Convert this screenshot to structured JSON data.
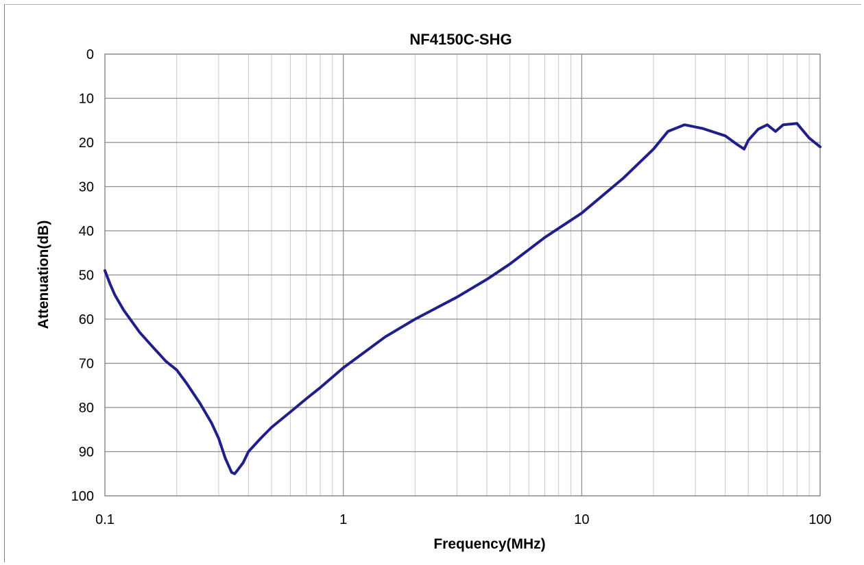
{
  "chart_data": {
    "type": "line",
    "title": "NF4150C-SHG",
    "xlabel": "Frequency(MHz)",
    "ylabel": "Attenuation(dB)",
    "x_scale": "log",
    "xlim": [
      0.1,
      100
    ],
    "ylim": [
      0,
      100
    ],
    "y_inverted": true,
    "grid": true,
    "x_ticks": [
      {
        "value": 0.1,
        "label": "0.1"
      },
      {
        "value": 1,
        "label": "1"
      },
      {
        "value": 10,
        "label": "10"
      },
      {
        "value": 100,
        "label": "100"
      }
    ],
    "y_ticks": [
      {
        "value": 0,
        "label": "0"
      },
      {
        "value": 10,
        "label": "10"
      },
      {
        "value": 20,
        "label": "20"
      },
      {
        "value": 30,
        "label": "30"
      },
      {
        "value": 40,
        "label": "40"
      },
      {
        "value": 50,
        "label": "50"
      },
      {
        "value": 60,
        "label": "60"
      },
      {
        "value": 70,
        "label": "70"
      },
      {
        "value": 80,
        "label": "80"
      },
      {
        "value": 90,
        "label": "90"
      },
      {
        "value": 100,
        "label": "100"
      }
    ],
    "series": [
      {
        "color": "#1f1f8c",
        "x": [
          0.1,
          0.105,
          0.11,
          0.12,
          0.14,
          0.16,
          0.18,
          0.2,
          0.22,
          0.25,
          0.28,
          0.3,
          0.32,
          0.34,
          0.35,
          0.36,
          0.38,
          0.4,
          0.45,
          0.5,
          0.6,
          0.7,
          0.8,
          1,
          1.5,
          2,
          3,
          4,
          5,
          7,
          10,
          15,
          20,
          23,
          27,
          32,
          40,
          45,
          48,
          50,
          55,
          60,
          65,
          70,
          80,
          90,
          100
        ],
        "y": [
          49,
          52,
          54.5,
          58,
          63,
          66.5,
          69.5,
          71.5,
          74.5,
          79,
          83.5,
          87,
          91.5,
          94.7,
          95,
          94.2,
          92.5,
          90,
          87,
          84.5,
          81,
          78,
          75.5,
          71,
          64,
          60,
          55,
          51,
          47.5,
          41.5,
          36,
          28,
          21.5,
          17.5,
          16,
          16.8,
          18.5,
          20.5,
          21.5,
          19.5,
          17,
          16,
          17.5,
          16,
          15.7,
          19,
          21
        ]
      }
    ]
  }
}
